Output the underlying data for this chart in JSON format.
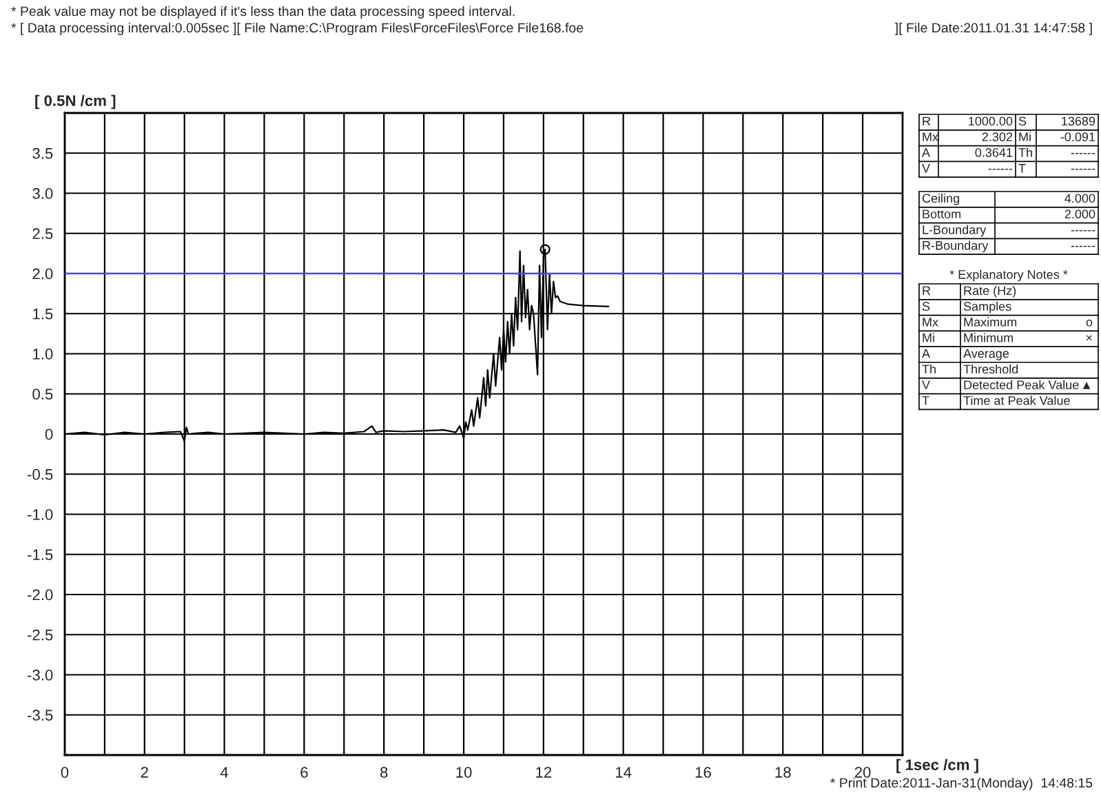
{
  "chart_data": [
    {
      "type": "line",
      "xlabel": "[ 1sec /cm ]",
      "ylabel": "[ 0.5N /cm ]",
      "annotations": [
        "* Peak value may not be displayed if it's less than the data processing speed interval.",
        "* [ Data processing interval:0.005sec ][ File Name:C:\\Program Files\\ForceFiles\\Force File168.foe",
        "][ File Date:2011.01.31 14:47:58 ]",
        "* Print Date:2011-Jan-31(Monday)  14:48:15"
      ],
      "xlim": [
        0,
        21
      ],
      "ylim": [
        -4,
        4
      ],
      "xticks": [
        0,
        {
          "value": 1,
          "label": null
        },
        2,
        {
          "value": 3,
          "label": null
        },
        4,
        {
          "value": 5,
          "label": null
        },
        6,
        {
          "value": 7,
          "label": null
        },
        8,
        {
          "value": 9,
          "label": null
        },
        10,
        {
          "value": 11,
          "label": null
        },
        12,
        {
          "value": 13,
          "label": null
        },
        14,
        {
          "value": 15,
          "label": null
        },
        16,
        {
          "value": 17,
          "label": null
        },
        18,
        {
          "value": 19,
          "label": null
        },
        20
      ],
      "yticks": [
        {
          "value": -3.5,
          "label": "-3.5"
        },
        {
          "value": -3,
          "label": "-3.0"
        },
        {
          "value": -2.5,
          "label": "-2.5"
        },
        {
          "value": -2,
          "label": "-2.0"
        },
        {
          "value": -1.5,
          "label": "-1.5"
        },
        {
          "value": -1,
          "label": "-1.0"
        },
        {
          "value": -0.5,
          "label": "-0.5"
        },
        0,
        {
          "value": 0.5,
          "label": "0.5"
        },
        {
          "value": 1,
          "label": "1.0"
        },
        {
          "value": 1.5,
          "label": "1.5"
        },
        {
          "value": 2,
          "label": "2.0"
        },
        {
          "value": 2.5,
          "label": "2.5"
        },
        {
          "value": 3,
          "label": "3.0"
        },
        {
          "value": 3.5,
          "label": "3.5"
        }
      ],
      "grid": true,
      "legend": false,
      "ref_lines": [
        {
          "axis": "y",
          "value": 2.0,
          "color": "#4a4ae0"
        }
      ],
      "series": [
        {
          "color": "#000000",
          "x": [
            0,
            0.5,
            1.0,
            1.5,
            2.0,
            2.5,
            2.9,
            3.0,
            3.05,
            3.1,
            3.3,
            3.6,
            4.0,
            4.5,
            5.0,
            5.5,
            6.0,
            6.5,
            7.0,
            7.5,
            7.7,
            7.8,
            8.0,
            8.5,
            9.0,
            9.5,
            9.8,
            9.9,
            10.0,
            10.05,
            10.1,
            10.2,
            10.25,
            10.35,
            10.4,
            10.5,
            10.55,
            10.6,
            10.65,
            10.75,
            10.8,
            10.9,
            10.95,
            11.0,
            11.05,
            11.1,
            11.15,
            11.2,
            11.25,
            11.3,
            11.35,
            11.41,
            11.45,
            11.5,
            11.55,
            11.6,
            11.65,
            11.7,
            11.75,
            11.85,
            11.9,
            11.95,
            12.0,
            12.04,
            12.1,
            12.15,
            12.2,
            12.25,
            12.3,
            12.35,
            12.42,
            12.6,
            13.0,
            13.63
          ],
          "values": [
            0,
            0.02,
            -0.01,
            0.02,
            0,
            0.02,
            0.03,
            -0.09,
            0.08,
            0,
            0.01,
            0.02,
            0,
            0.01,
            0.02,
            0.01,
            0,
            0.02,
            0.01,
            0.03,
            0.1,
            0.02,
            0.04,
            0.03,
            0.04,
            0.05,
            0.02,
            0.1,
            -0.05,
            0.15,
            0.05,
            0.3,
            0.1,
            0.45,
            0.2,
            0.7,
            0.35,
            0.8,
            0.45,
            1.0,
            0.6,
            1.2,
            0.8,
            1.3,
            0.9,
            1.4,
            1.0,
            1.5,
            1.1,
            1.7,
            1.3,
            2.28,
            1.4,
            2.1,
            1.45,
            1.8,
            1.3,
            1.6,
            1.5,
            0.74,
            2.1,
            1.2,
            2.2,
            2.3,
            1.3,
            2.0,
            1.5,
            1.9,
            1.7,
            1.72,
            1.65,
            1.62,
            1.6,
            1.59
          ]
        },
        {
          "type": "scatter",
          "color": "#000000",
          "marker": "circle",
          "x": [
            12.04
          ],
          "values": [
            2.3
          ]
        }
      ]
    },
    {
      "type": "other",
      "title": "* Explanatory Notes *",
      "annotations": [
        "R",
        "1000.00",
        "S",
        "13689",
        "Mx",
        "2.302",
        "Mi",
        "-0.091",
        "A",
        "0.3641",
        "Th",
        "------",
        "V",
        "------",
        "T",
        "------",
        "Ceiling",
        "4.000",
        "Bottom",
        "2.000",
        "L-Boundary",
        "------",
        "R-Boundary",
        "------",
        "R",
        "Rate (Hz)",
        "S",
        "Samples",
        "Mx",
        "Maximum",
        "o",
        "Mi",
        "Minimum",
        "×",
        "A",
        "Average",
        "Th",
        "Threshold",
        "V",
        "Detected Peak Value",
        "▲",
        "T",
        "Time at Peak Value"
      ]
    }
  ]
}
